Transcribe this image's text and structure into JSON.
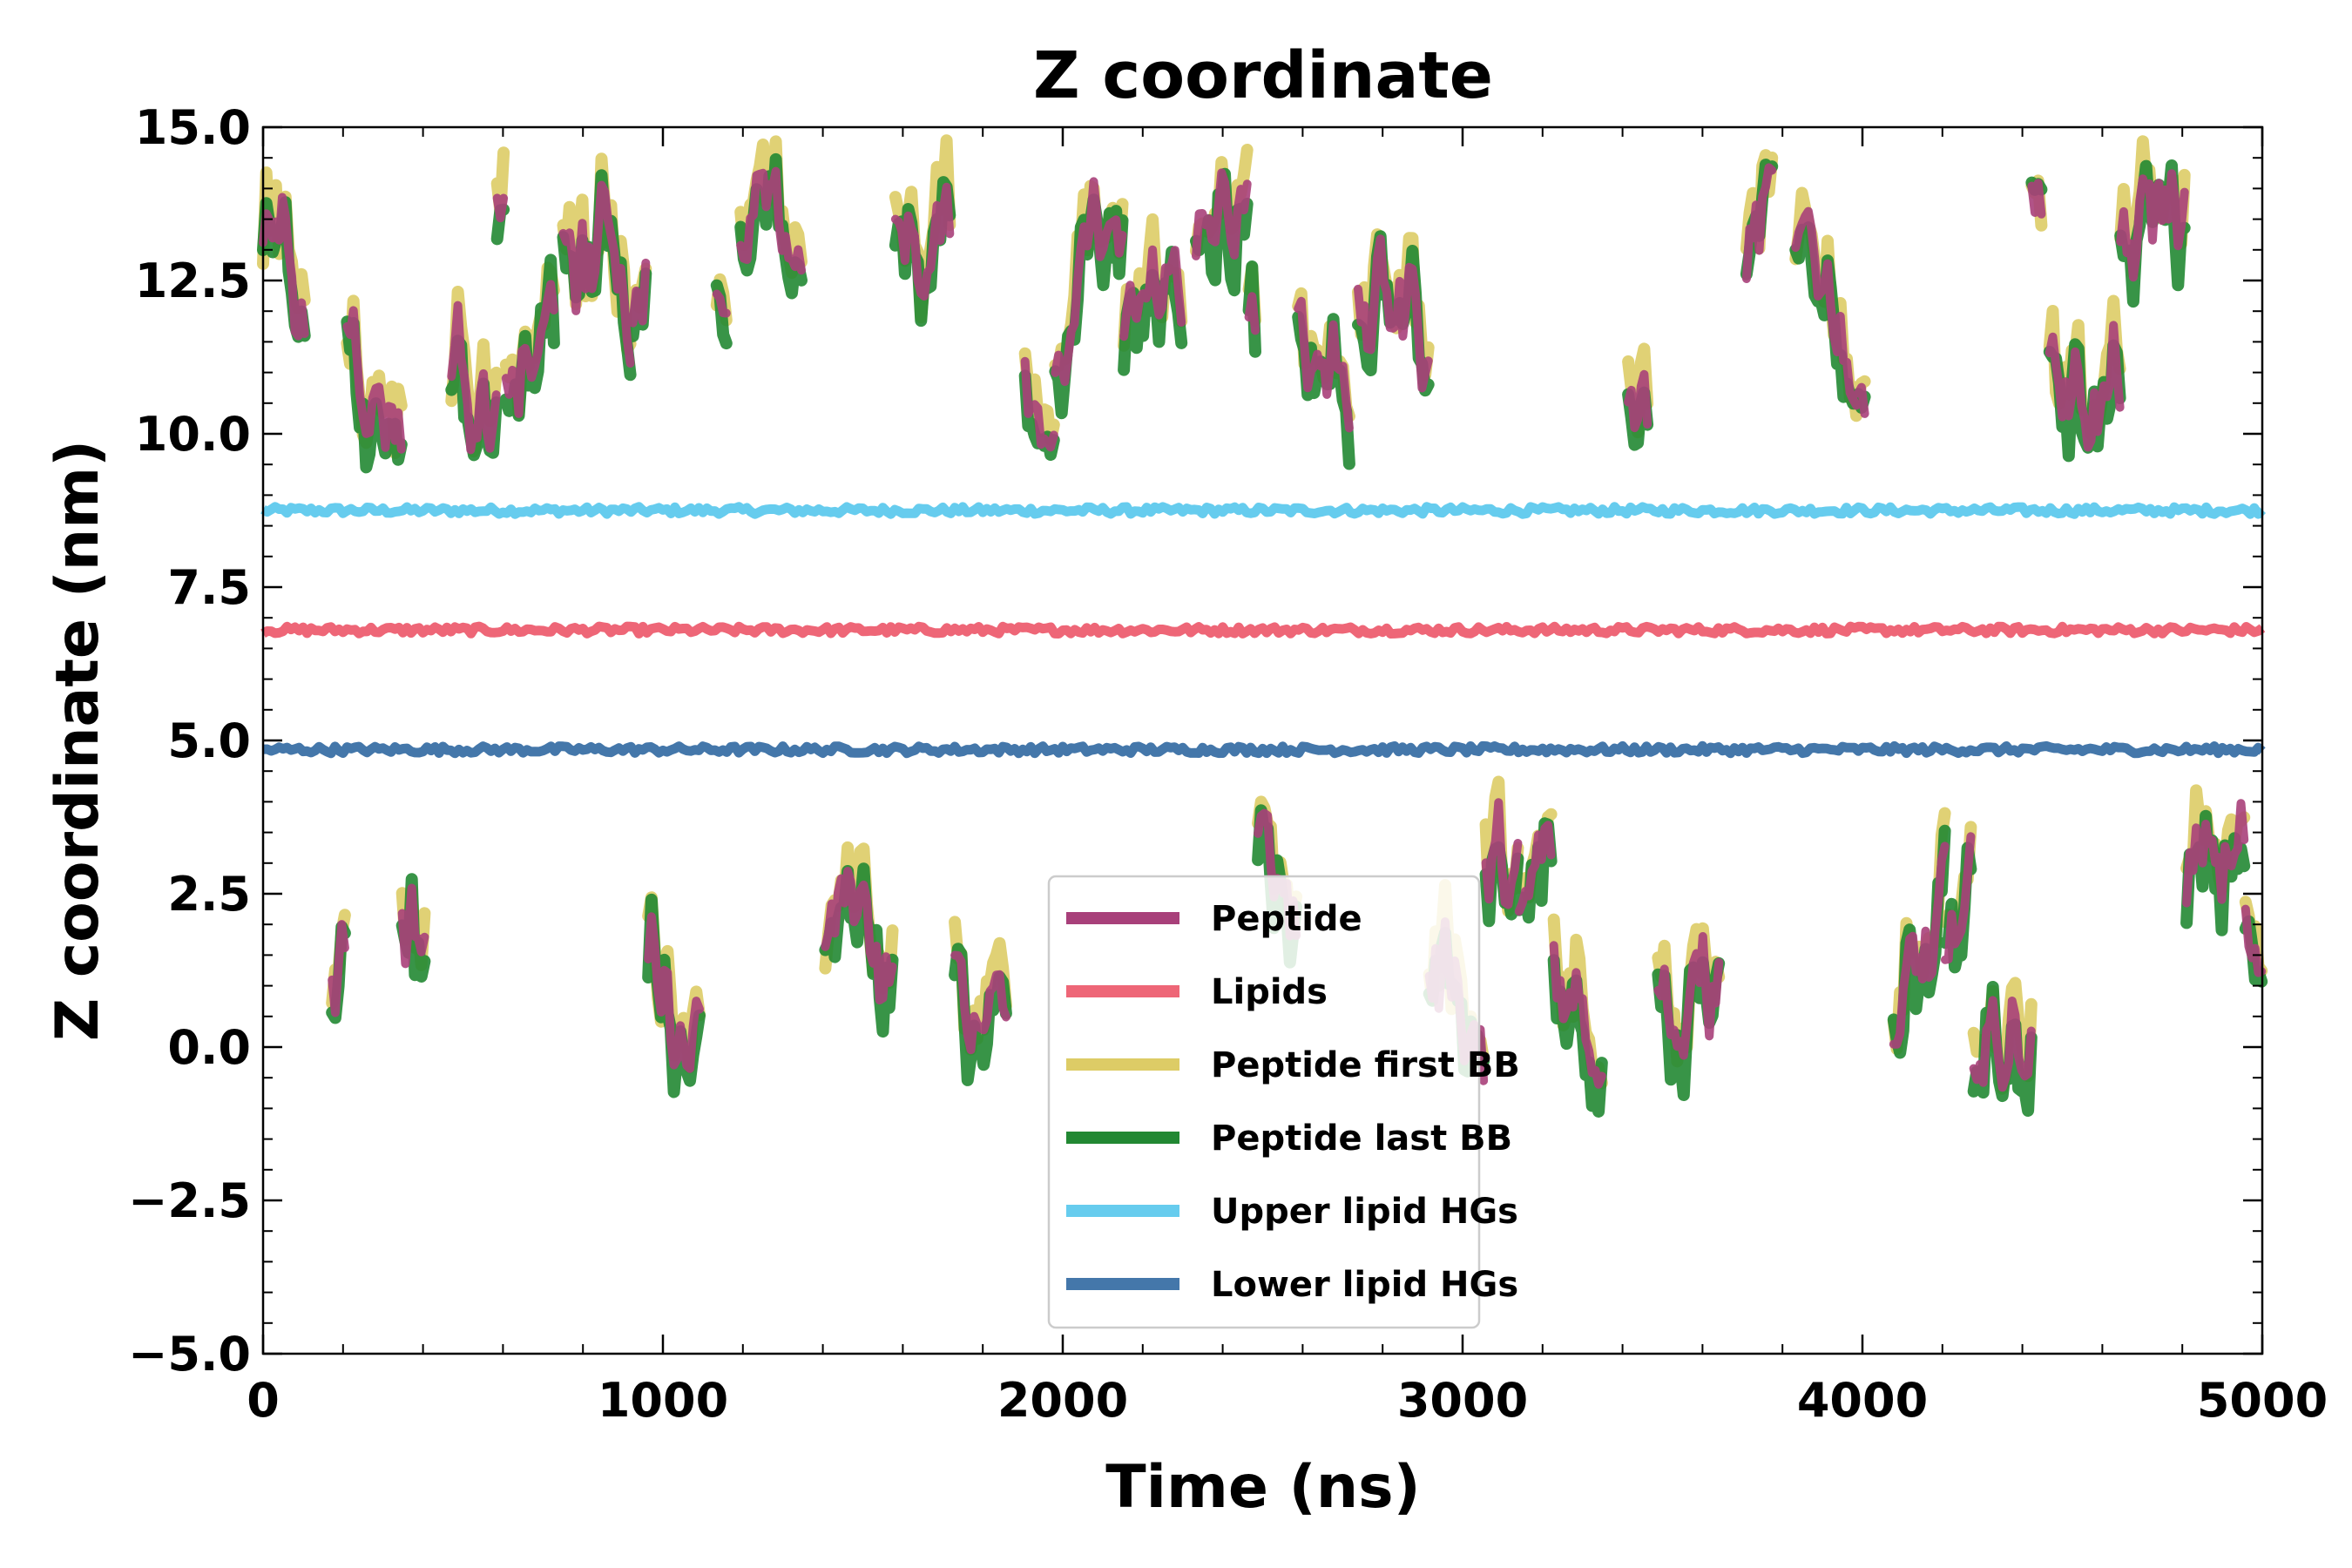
{
  "chart_data": {
    "type": "line",
    "title": "Z coordinate",
    "xlabel": "Time (ns)",
    "ylabel": "Z coordinate (nm)",
    "xlim": [
      0,
      5000
    ],
    "ylim": [
      -5.0,
      15.0
    ],
    "xticks": [
      0,
      1000,
      2000,
      3000,
      4000,
      5000
    ],
    "xtick_labels": [
      "0",
      "1000",
      "2000",
      "3000",
      "4000",
      "5000"
    ],
    "yticks": [
      -5.0,
      -2.5,
      0.0,
      2.5,
      5.0,
      7.5,
      10.0,
      12.5,
      15.0
    ],
    "ytick_labels": [
      "−5.0",
      "−2.5",
      "0.0",
      "2.5",
      "5.0",
      "7.5",
      "10.0",
      "12.5",
      "15.0"
    ],
    "grid": false,
    "legend_position": "lower-center",
    "series": [
      {
        "name": "Peptide",
        "color": "#A8407A",
        "style": "fluctuating two-band (upper ~10-14 nm, lower ~0-3.5 nm), mean upper 11.8, mean lower 1.6"
      },
      {
        "name": "Lipids",
        "color": "#EE6677",
        "x": [
          0,
          1000,
          2000,
          3000,
          4000,
          5000
        ],
        "values": [
          6.8,
          6.8,
          6.8,
          6.8,
          6.8,
          6.8
        ]
      },
      {
        "name": "Peptide first BB",
        "color": "#DDCC66",
        "style": "fluctuating two-band, similar to Peptide"
      },
      {
        "name": "Peptide last BB",
        "color": "#228833",
        "style": "fluctuating two-band, similar to Peptide"
      },
      {
        "name": "Upper lipid HGs",
        "color": "#66CCEE",
        "x": [
          0,
          1000,
          2000,
          3000,
          4000,
          5000
        ],
        "values": [
          8.75,
          8.75,
          8.75,
          8.75,
          8.75,
          8.75
        ]
      },
      {
        "name": "Lower lipid HGs",
        "color": "#4477AA",
        "x": [
          0,
          1000,
          2000,
          3000,
          4000,
          5000
        ],
        "values": [
          4.85,
          4.85,
          4.85,
          4.85,
          4.85,
          4.85
        ]
      }
    ],
    "legend": [
      "Peptide",
      "Lipids",
      "Peptide first BB",
      "Peptide last BB",
      "Upper lipid HGs",
      "Lower lipid HGs"
    ]
  }
}
